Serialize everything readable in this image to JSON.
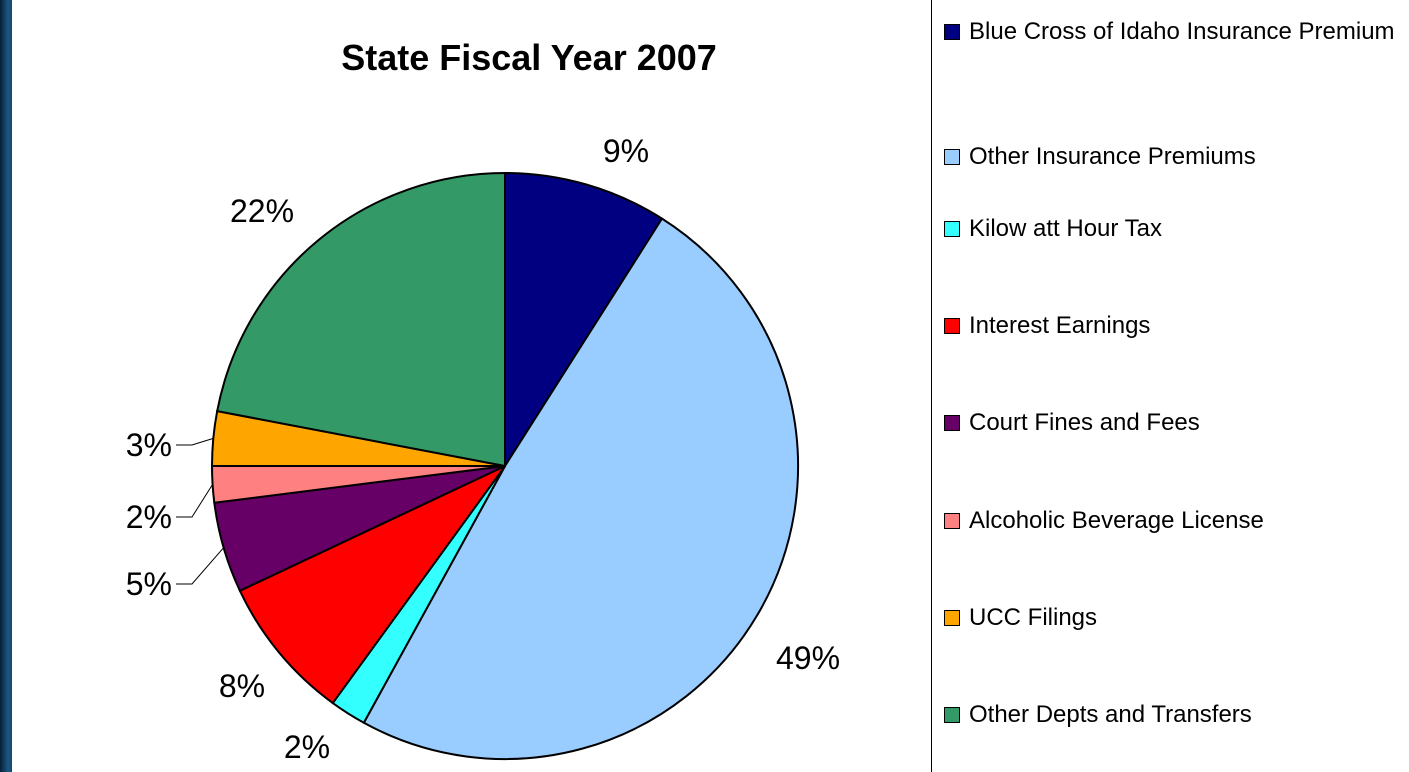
{
  "chart_data": {
    "type": "pie",
    "title": "State Fiscal Year 2007",
    "series": [
      {
        "name": "Blue Cross of Idaho Insurance Premium",
        "value": 9,
        "label": "9%",
        "color": "#000080"
      },
      {
        "name": "Other Insurance Premiums",
        "value": 49,
        "label": "49%",
        "color": "#99ccff"
      },
      {
        "name": "Kilow att Hour Tax",
        "value": 2,
        "label": "2%",
        "color": "#33ffff"
      },
      {
        "name": "Interest Earnings",
        "value": 8,
        "label": "8%",
        "color": "#ff0000"
      },
      {
        "name": "Court Fines and Fees",
        "value": 5,
        "label": "5%",
        "color": "#660066"
      },
      {
        "name": "Alcoholic Beverage License",
        "value": 2,
        "label": "2%",
        "color": "#ff8080"
      },
      {
        "name": "UCC Filings",
        "value": 3,
        "label": "3%",
        "color": "#ffa500"
      },
      {
        "name": "Other Depts and Transfers",
        "value": 22,
        "label": "22%",
        "color": "#339966"
      }
    ],
    "legend_position": "right"
  }
}
